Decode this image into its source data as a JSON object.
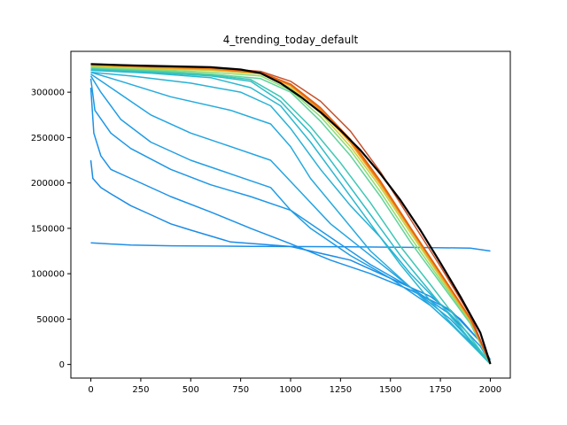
{
  "chart_data": {
    "type": "line",
    "title": "4_trending_today_default",
    "xlabel": "",
    "ylabel": "",
    "xlim": [
      -100,
      2100
    ],
    "ylim": [
      -15000,
      345000
    ],
    "xticks": [
      0,
      250,
      500,
      750,
      1000,
      1250,
      1500,
      1750,
      2000
    ],
    "yticks": [
      0,
      50000,
      100000,
      150000,
      200000,
      250000,
      300000
    ],
    "grid": false,
    "legend": "none",
    "series": [
      {
        "color": "#1f8fe8",
        "x": [
          0,
          200,
          400,
          800,
          1200,
          1600,
          1900,
          2000
        ],
        "y": [
          134000,
          131500,
          130800,
          130200,
          129800,
          129000,
          128200,
          125000
        ]
      },
      {
        "color": "#1b8ce6",
        "x": [
          0,
          10,
          50,
          100,
          200,
          300,
          400,
          500,
          700,
          1000,
          1300,
          1500,
          1700,
          1850,
          1950,
          2000
        ],
        "y": [
          225000,
          205000,
          195000,
          188000,
          175000,
          165000,
          155000,
          148000,
          135000,
          130000,
          115000,
          95000,
          75000,
          50000,
          25000,
          5000
        ]
      },
      {
        "color": "#1c92e8",
        "x": [
          0,
          15,
          50,
          100,
          200,
          400,
          600,
          800,
          1000,
          1200,
          1400,
          1600,
          1800,
          1950,
          2000
        ],
        "y": [
          305000,
          255000,
          230000,
          215000,
          205000,
          185000,
          168000,
          150000,
          133000,
          115000,
          100000,
          82000,
          60000,
          25000,
          2000
        ]
      },
      {
        "color": "#1e97e6",
        "x": [
          0,
          20,
          100,
          200,
          400,
          600,
          800,
          1000,
          1200,
          1400,
          1600,
          1800,
          1950,
          2000
        ],
        "y": [
          315000,
          280000,
          255000,
          238000,
          215000,
          198000,
          185000,
          170000,
          140000,
          110000,
          85000,
          55000,
          20000,
          1000
        ]
      },
      {
        "color": "#209de4",
        "x": [
          0,
          50,
          150,
          300,
          500,
          700,
          900,
          1000,
          1100,
          1300,
          1500,
          1700,
          1900,
          2000
        ],
        "y": [
          318000,
          300000,
          270000,
          245000,
          225000,
          210000,
          195000,
          170000,
          150000,
          120000,
          95000,
          65000,
          25000,
          1000
        ]
      },
      {
        "color": "#22a4e2",
        "x": [
          0,
          100,
          300,
          500,
          700,
          900,
          1050,
          1200,
          1400,
          1600,
          1800,
          1950,
          2000
        ],
        "y": [
          320000,
          305000,
          275000,
          255000,
          240000,
          225000,
          190000,
          155000,
          120000,
          85000,
          50000,
          15000,
          1000
        ]
      },
      {
        "color": "#25aadd",
        "x": [
          0,
          150,
          400,
          700,
          900,
          1000,
          1100,
          1250,
          1400,
          1600,
          1800,
          1950,
          2000
        ],
        "y": [
          322000,
          312000,
          295000,
          280000,
          265000,
          240000,
          205000,
          165000,
          125000,
          85000,
          45000,
          12000,
          500
        ]
      },
      {
        "color": "#27b1d6",
        "x": [
          0,
          200,
          500,
          750,
          900,
          1000,
          1150,
          1300,
          1450,
          1600,
          1800,
          1950,
          2000
        ],
        "y": [
          322000,
          318000,
          310000,
          300000,
          285000,
          260000,
          215000,
          175000,
          140000,
          100000,
          55000,
          12000,
          500
        ]
      },
      {
        "color": "#2ab7cf",
        "x": [
          0,
          300,
          600,
          800,
          950,
          1100,
          1250,
          1400,
          1550,
          1700,
          1850,
          2000
        ],
        "y": [
          324000,
          321000,
          316000,
          305000,
          285000,
          245000,
          200000,
          155000,
          110000,
          70000,
          35000,
          500
        ]
      },
      {
        "color": "#2ebdc6",
        "x": [
          0,
          300,
          600,
          800,
          950,
          1100,
          1250,
          1400,
          1550,
          1700,
          1850,
          2000
        ],
        "y": [
          325000,
          322000,
          318000,
          312000,
          290000,
          255000,
          210000,
          165000,
          120000,
          80000,
          40000,
          500
        ]
      },
      {
        "color": "#3ec7b6",
        "x": [
          0,
          300,
          600,
          800,
          950,
          1100,
          1250,
          1400,
          1550,
          1700,
          1850,
          2000
        ],
        "y": [
          326000,
          323000,
          319000,
          314000,
          295000,
          262000,
          222000,
          178000,
          130000,
          88000,
          45000,
          500
        ]
      },
      {
        "color": "#5fd39b",
        "x": [
          0,
          300,
          600,
          850,
          1000,
          1150,
          1300,
          1450,
          1600,
          1750,
          1900,
          2000
        ],
        "y": [
          327000,
          324000,
          320000,
          315000,
          300000,
          268000,
          230000,
          185000,
          135000,
          90000,
          45000,
          500
        ]
      },
      {
        "color": "#8edc73",
        "x": [
          0,
          300,
          600,
          850,
          1000,
          1150,
          1300,
          1450,
          1600,
          1750,
          1900,
          2000
        ],
        "y": [
          328000,
          325000,
          322000,
          318000,
          302000,
          273000,
          236000,
          190000,
          140000,
          93000,
          47000,
          500
        ]
      },
      {
        "color": "#c8cf45",
        "x": [
          0,
          300,
          600,
          850,
          1000,
          1150,
          1300,
          1450,
          1600,
          1750,
          1900,
          2000
        ],
        "y": [
          329000,
          326000,
          324000,
          320000,
          305000,
          277000,
          240000,
          195000,
          145000,
          96000,
          48000,
          500
        ]
      },
      {
        "color": "#f0a424",
        "x": [
          0,
          300,
          600,
          850,
          1000,
          1150,
          1300,
          1450,
          1600,
          1750,
          1900,
          2000
        ],
        "y": [
          330000,
          327000,
          325000,
          321000,
          307000,
          280000,
          244000,
          198000,
          148000,
          98000,
          49000,
          500
        ]
      },
      {
        "color": "#ef7a12",
        "x": [
          0,
          300,
          600,
          850,
          1000,
          1150,
          1300,
          1450,
          1600,
          1750,
          1900,
          2000
        ],
        "y": [
          330000,
          328000,
          326000,
          321000,
          308000,
          281000,
          246000,
          200000,
          150000,
          100000,
          50000,
          500
        ]
      },
      {
        "color": "#e06010",
        "x": [
          0,
          300,
          600,
          850,
          1000,
          1150,
          1300,
          1450,
          1600,
          1750,
          1900,
          2000
        ],
        "y": [
          331000,
          328000,
          327000,
          322000,
          309000,
          283000,
          248000,
          202000,
          151000,
          101000,
          51000,
          500
        ]
      },
      {
        "color": "#c8502a",
        "x": [
          0,
          300,
          600,
          850,
          1000,
          1150,
          1300,
          1450,
          1600,
          1750,
          1900,
          2000
        ],
        "y": [
          331000,
          329000,
          327000,
          323000,
          312000,
          290000,
          257000,
          212000,
          160000,
          108000,
          54000,
          500
        ]
      },
      {
        "color": "#000000",
        "x": [
          0,
          200,
          400,
          600,
          750,
          850,
          950,
          1050,
          1150,
          1250,
          1350,
          1450,
          1550,
          1650,
          1750,
          1850,
          1950,
          2000
        ],
        "y": [
          331000,
          329500,
          328500,
          327500,
          325000,
          321000,
          310000,
          295000,
          278000,
          258000,
          236000,
          210000,
          181000,
          148000,
          112000,
          75000,
          35000,
          500
        ]
      }
    ]
  }
}
